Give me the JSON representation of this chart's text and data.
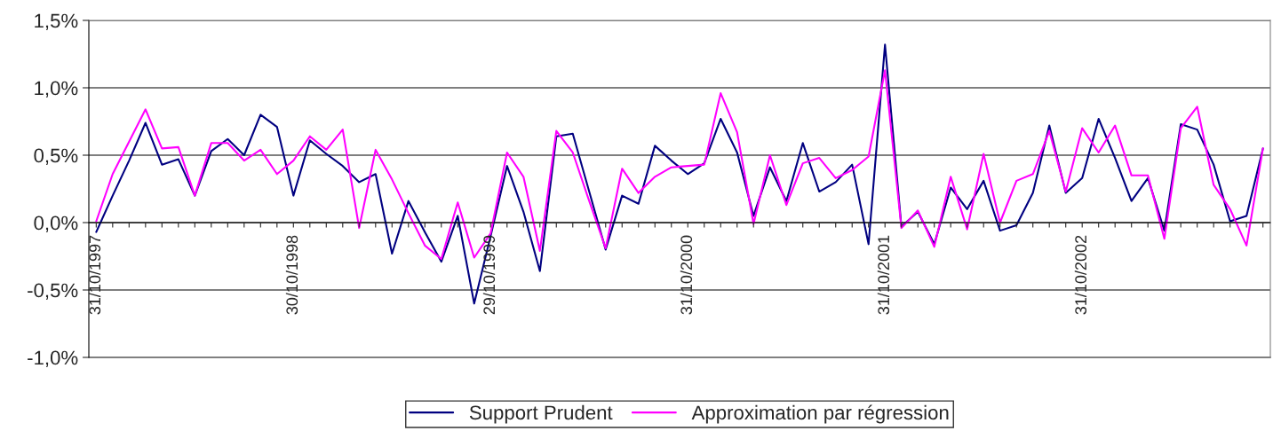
{
  "chart_data": {
    "type": "line",
    "categories": [
      "31/10/1997",
      null,
      null,
      null,
      null,
      null,
      null,
      null,
      null,
      null,
      null,
      null,
      "30/10/1998",
      null,
      null,
      null,
      null,
      null,
      null,
      null,
      null,
      null,
      null,
      null,
      "29/10/1999",
      null,
      null,
      null,
      null,
      null,
      null,
      null,
      null,
      null,
      null,
      null,
      "31/10/2000",
      null,
      null,
      null,
      null,
      null,
      null,
      null,
      null,
      null,
      null,
      null,
      "31/10/2001",
      null,
      null,
      null,
      null,
      null,
      null,
      null,
      null,
      null,
      null,
      null,
      "31/10/2002",
      null,
      null,
      null,
      null,
      null,
      null,
      null,
      null,
      null,
      null,
      null
    ],
    "series": [
      {
        "name": "Support Prudent",
        "color": "#000080",
        "values": [
          -0.07,
          0.2,
          0.46,
          0.74,
          0.43,
          0.47,
          0.2,
          0.53,
          0.62,
          0.5,
          0.8,
          0.71,
          0.2,
          0.61,
          0.51,
          0.42,
          0.3,
          0.36,
          -0.23,
          0.16,
          -0.07,
          -0.29,
          0.05,
          -0.6,
          -0.1,
          0.42,
          0.08,
          -0.36,
          0.64,
          0.66,
          0.23,
          -0.2,
          0.2,
          0.14,
          0.57,
          0.46,
          0.36,
          0.44,
          0.77,
          0.52,
          0.05,
          0.41,
          0.16,
          0.59,
          0.23,
          0.3,
          0.43,
          -0.16,
          1.32,
          -0.03,
          0.08,
          -0.16,
          0.26,
          0.1,
          0.31,
          -0.06,
          -0.02,
          0.22,
          0.72,
          0.22,
          0.33,
          0.77,
          0.48,
          0.16,
          0.33,
          -0.06,
          0.73,
          0.69,
          0.43,
          0.01,
          0.05,
          0.55
        ]
      },
      {
        "name": "Approximation par régression",
        "color": "#ff00ff",
        "values": [
          0.01,
          0.36,
          0.6,
          0.84,
          0.55,
          0.56,
          0.2,
          0.59,
          0.59,
          0.46,
          0.54,
          0.36,
          0.46,
          0.64,
          0.54,
          0.69,
          -0.04,
          0.54,
          0.32,
          0.07,
          -0.17,
          -0.27,
          0.15,
          -0.26,
          -0.08,
          0.52,
          0.34,
          -0.21,
          0.68,
          0.52,
          0.16,
          -0.19,
          0.4,
          0.22,
          0.34,
          0.41,
          0.42,
          0.43,
          0.96,
          0.67,
          -0.01,
          0.5,
          0.13,
          0.44,
          0.48,
          0.33,
          0.39,
          0.49,
          1.13,
          -0.04,
          0.09,
          -0.18,
          0.34,
          -0.05,
          0.51,
          0.0,
          0.31,
          0.36,
          0.68,
          0.23,
          0.7,
          0.52,
          0.72,
          0.35,
          0.35,
          -0.12,
          0.7,
          0.86,
          0.28,
          0.1,
          -0.17,
          0.55
        ]
      }
    ],
    "ylim": [
      -1.0,
      1.5
    ],
    "yticks": [
      {
        "value": -1.0,
        "label": "-1,0%"
      },
      {
        "value": -0.5,
        "label": "-0,5%"
      },
      {
        "value": 0.0,
        "label": "0,0%"
      },
      {
        "value": 0.5,
        "label": "0,5%"
      },
      {
        "value": 1.0,
        "label": "1,0%"
      },
      {
        "value": 1.5,
        "label": "1,5%"
      }
    ],
    "grid": "y",
    "legend": "bottom",
    "marker": "none",
    "line_style": "solid"
  }
}
